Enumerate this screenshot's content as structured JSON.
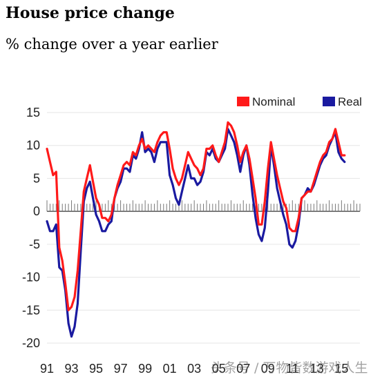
{
  "header": {
    "title": "House price change",
    "subtitle": "% change over a year earlier"
  },
  "watermark": "头条号 / 万物皆数游戏人生",
  "colors": {
    "nominal": "#ff1a1a",
    "real": "#1a1aa0",
    "zero_line": "#555555",
    "grid": "#e6e6e6"
  },
  "chart_data": {
    "type": "line",
    "title": "",
    "xlabel": "",
    "ylabel": "",
    "ylim": [
      -20,
      15
    ],
    "xlim": [
      1991,
      2016.5
    ],
    "yticks": [
      15,
      10,
      5,
      0,
      -5,
      -10,
      -15,
      -20
    ],
    "ytick_labels": [
      "15",
      "10",
      "5",
      "0",
      "-5",
      "-10",
      "-15",
      "-20"
    ],
    "xtick_values": [
      1991,
      1993,
      1995,
      1997,
      1999,
      2001,
      2003,
      2005,
      2007,
      2009,
      2011,
      2013,
      2015
    ],
    "xtick_labels": [
      "91",
      "93",
      "95",
      "97",
      "99",
      "01",
      "03",
      "05",
      "07",
      "09",
      "11",
      "13",
      "15"
    ],
    "grid": true,
    "legend": {
      "placement": "top-right",
      "entries": [
        "Nominal",
        "Real"
      ]
    },
    "series": [
      {
        "name": "Nominal",
        "color": "#ff1a1a",
        "points": [
          [
            1991.0,
            9.5
          ],
          [
            1991.25,
            7.5
          ],
          [
            1991.5,
            5.5
          ],
          [
            1991.75,
            6.0
          ],
          [
            1992.0,
            -5.5
          ],
          [
            1992.25,
            -7.5
          ],
          [
            1992.5,
            -11.0
          ],
          [
            1992.75,
            -15.0
          ],
          [
            1993.0,
            -14.5
          ],
          [
            1993.25,
            -13.0
          ],
          [
            1993.5,
            -9.0
          ],
          [
            1993.75,
            -3.0
          ],
          [
            1994.0,
            3.0
          ],
          [
            1994.25,
            5.0
          ],
          [
            1994.5,
            7.0
          ],
          [
            1994.75,
            4.5
          ],
          [
            1995.0,
            2.0
          ],
          [
            1995.25,
            1.0
          ],
          [
            1995.5,
            -1.0
          ],
          [
            1995.75,
            -1.0
          ],
          [
            1996.0,
            -1.5
          ],
          [
            1996.25,
            -0.5
          ],
          [
            1996.5,
            2.0
          ],
          [
            1996.75,
            4.0
          ],
          [
            1997.0,
            5.5
          ],
          [
            1997.25,
            7.0
          ],
          [
            1997.5,
            7.5
          ],
          [
            1997.75,
            7.0
          ],
          [
            1998.0,
            9.0
          ],
          [
            1998.25,
            8.5
          ],
          [
            1998.5,
            10.0
          ],
          [
            1998.75,
            11.0
          ],
          [
            1999.0,
            9.5
          ],
          [
            1999.25,
            10.0
          ],
          [
            1999.5,
            9.5
          ],
          [
            1999.75,
            9.0
          ],
          [
            2000.0,
            10.5
          ],
          [
            2000.25,
            11.5
          ],
          [
            2000.5,
            12.0
          ],
          [
            2000.75,
            12.0
          ],
          [
            2001.0,
            9.5
          ],
          [
            2001.25,
            6.5
          ],
          [
            2001.5,
            5.0
          ],
          [
            2001.75,
            4.0
          ],
          [
            2002.0,
            5.0
          ],
          [
            2002.25,
            7.0
          ],
          [
            2002.5,
            9.0
          ],
          [
            2002.75,
            8.0
          ],
          [
            2003.0,
            7.0
          ],
          [
            2003.25,
            6.5
          ],
          [
            2003.5,
            5.5
          ],
          [
            2003.75,
            6.5
          ],
          [
            2004.0,
            9.5
          ],
          [
            2004.25,
            9.5
          ],
          [
            2004.5,
            10.0
          ],
          [
            2004.75,
            8.5
          ],
          [
            2005.0,
            7.5
          ],
          [
            2005.25,
            9.0
          ],
          [
            2005.5,
            10.5
          ],
          [
            2005.75,
            13.5
          ],
          [
            2006.0,
            13.0
          ],
          [
            2006.25,
            12.0
          ],
          [
            2006.5,
            10.0
          ],
          [
            2006.75,
            7.5
          ],
          [
            2007.0,
            9.0
          ],
          [
            2007.25,
            10.0
          ],
          [
            2007.5,
            8.0
          ],
          [
            2007.75,
            5.0
          ],
          [
            2008.0,
            2.0
          ],
          [
            2008.25,
            -2.0
          ],
          [
            2008.5,
            -2.0
          ],
          [
            2008.75,
            1.5
          ],
          [
            2009.0,
            6.5
          ],
          [
            2009.25,
            10.5
          ],
          [
            2009.5,
            8.0
          ],
          [
            2009.75,
            5.5
          ],
          [
            2010.0,
            3.5
          ],
          [
            2010.25,
            1.5
          ],
          [
            2010.5,
            0.5
          ],
          [
            2010.75,
            -2.5
          ],
          [
            2011.0,
            -3.0
          ],
          [
            2011.25,
            -3.0
          ],
          [
            2011.5,
            -1.0
          ],
          [
            2011.75,
            2.0
          ],
          [
            2012.0,
            2.5
          ],
          [
            2012.25,
            3.0
          ],
          [
            2012.5,
            3.0
          ],
          [
            2012.75,
            4.5
          ],
          [
            2013.0,
            6.0
          ],
          [
            2013.25,
            7.5
          ],
          [
            2013.5,
            8.5
          ],
          [
            2013.75,
            9.0
          ],
          [
            2014.0,
            10.5
          ],
          [
            2014.25,
            11.0
          ],
          [
            2014.5,
            12.5
          ],
          [
            2014.75,
            10.5
          ],
          [
            2015.0,
            8.5
          ],
          [
            2015.25,
            8.5
          ]
        ]
      },
      {
        "name": "Real",
        "color": "#1a1aa0",
        "points": [
          [
            1991.0,
            -1.5
          ],
          [
            1991.25,
            -3.0
          ],
          [
            1991.5,
            -3.0
          ],
          [
            1991.75,
            -2.0
          ],
          [
            1992.0,
            -8.5
          ],
          [
            1992.25,
            -9.0
          ],
          [
            1992.5,
            -12.0
          ],
          [
            1992.75,
            -17.0
          ],
          [
            1993.0,
            -19.0
          ],
          [
            1993.25,
            -17.5
          ],
          [
            1993.5,
            -14.0
          ],
          [
            1993.75,
            -6.0
          ],
          [
            1994.0,
            1.5
          ],
          [
            1994.25,
            3.5
          ],
          [
            1994.5,
            4.5
          ],
          [
            1994.75,
            2.0
          ],
          [
            1995.0,
            -0.5
          ],
          [
            1995.25,
            -1.5
          ],
          [
            1995.5,
            -3.0
          ],
          [
            1995.75,
            -3.0
          ],
          [
            1996.0,
            -2.0
          ],
          [
            1996.25,
            -1.5
          ],
          [
            1996.5,
            2.0
          ],
          [
            1996.75,
            3.5
          ],
          [
            1997.0,
            4.5
          ],
          [
            1997.25,
            6.5
          ],
          [
            1997.5,
            6.5
          ],
          [
            1997.75,
            6.0
          ],
          [
            1998.0,
            8.5
          ],
          [
            1998.25,
            8.0
          ],
          [
            1998.5,
            9.5
          ],
          [
            1998.75,
            12.0
          ],
          [
            1999.0,
            9.0
          ],
          [
            1999.25,
            9.5
          ],
          [
            1999.5,
            9.0
          ],
          [
            1999.75,
            7.5
          ],
          [
            2000.0,
            9.5
          ],
          [
            2000.25,
            10.5
          ],
          [
            2000.5,
            10.5
          ],
          [
            2000.75,
            10.5
          ],
          [
            2001.0,
            5.5
          ],
          [
            2001.25,
            4.0
          ],
          [
            2001.5,
            2.0
          ],
          [
            2001.75,
            1.0
          ],
          [
            2002.0,
            3.0
          ],
          [
            2002.25,
            5.0
          ],
          [
            2002.5,
            7.0
          ],
          [
            2002.75,
            5.0
          ],
          [
            2003.0,
            5.0
          ],
          [
            2003.25,
            4.0
          ],
          [
            2003.5,
            4.5
          ],
          [
            2003.75,
            6.0
          ],
          [
            2004.0,
            9.0
          ],
          [
            2004.25,
            8.5
          ],
          [
            2004.5,
            9.5
          ],
          [
            2004.75,
            8.0
          ],
          [
            2005.0,
            7.5
          ],
          [
            2005.25,
            8.5
          ],
          [
            2005.5,
            9.5
          ],
          [
            2005.75,
            12.5
          ],
          [
            2006.0,
            11.5
          ],
          [
            2006.25,
            10.5
          ],
          [
            2006.5,
            8.5
          ],
          [
            2006.75,
            6.0
          ],
          [
            2007.0,
            8.5
          ],
          [
            2007.25,
            10.0
          ],
          [
            2007.5,
            7.0
          ],
          [
            2007.75,
            2.5
          ],
          [
            2008.0,
            -1.0
          ],
          [
            2008.25,
            -3.5
          ],
          [
            2008.5,
            -4.5
          ],
          [
            2008.75,
            -2.5
          ],
          [
            2009.0,
            3.0
          ],
          [
            2009.25,
            10.0
          ],
          [
            2009.5,
            7.0
          ],
          [
            2009.75,
            3.5
          ],
          [
            2010.0,
            1.5
          ],
          [
            2010.25,
            -0.5
          ],
          [
            2010.5,
            -2.0
          ],
          [
            2010.75,
            -5.0
          ],
          [
            2011.0,
            -5.5
          ],
          [
            2011.25,
            -4.5
          ],
          [
            2011.5,
            -2.0
          ],
          [
            2011.75,
            2.0
          ],
          [
            2012.0,
            2.5
          ],
          [
            2012.25,
            3.5
          ],
          [
            2012.5,
            3.0
          ],
          [
            2012.75,
            4.0
          ],
          [
            2013.0,
            5.5
          ],
          [
            2013.25,
            7.0
          ],
          [
            2013.5,
            8.0
          ],
          [
            2013.75,
            8.5
          ],
          [
            2014.0,
            10.0
          ],
          [
            2014.25,
            11.0
          ],
          [
            2014.5,
            12.0
          ],
          [
            2014.75,
            9.0
          ],
          [
            2015.0,
            8.0
          ],
          [
            2015.25,
            7.5
          ]
        ]
      }
    ]
  }
}
